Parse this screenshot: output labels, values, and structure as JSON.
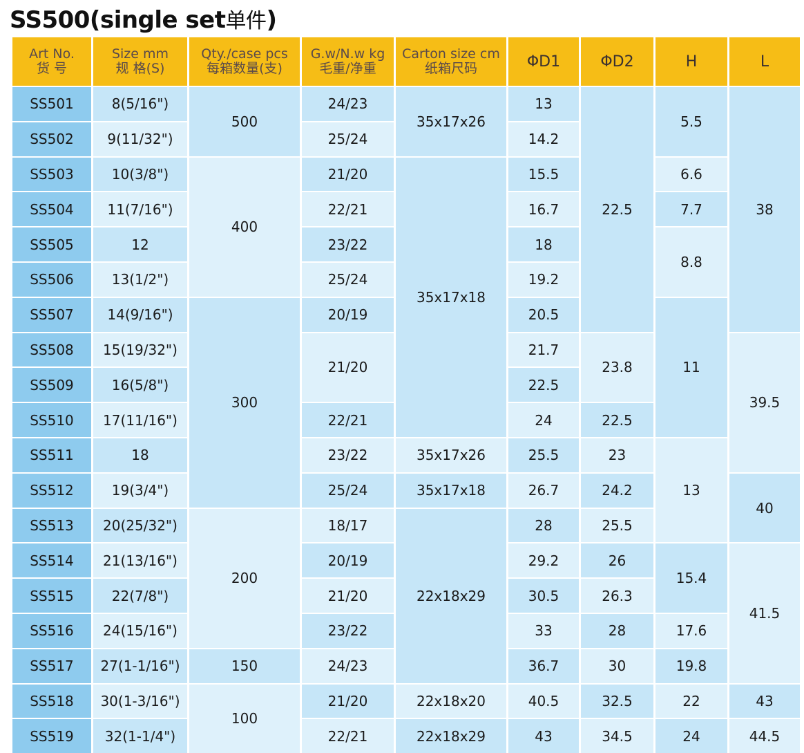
{
  "title": {
    "main": "SS500(single set",
    "cn": "单件",
    "close": ")"
  },
  "headers": [
    {
      "line1": "Art No.",
      "line2": "货  号"
    },
    {
      "line1": "Size mm",
      "line2": "规 格(S)"
    },
    {
      "line1": "Qty./case pcs",
      "line2": "每箱数量(支)"
    },
    {
      "line1": "G.w/N.w kg",
      "line2": "毛重/净重"
    },
    {
      "line1": "Carton size cm",
      "line2": "纸箱尺码"
    },
    {
      "line1": "ΦD1",
      "line2": ""
    },
    {
      "line1": "ΦD2",
      "line2": ""
    },
    {
      "line1": "H",
      "line2": ""
    },
    {
      "line1": "L",
      "line2": ""
    }
  ],
  "art_no": [
    "SS501",
    "SS502",
    "SS503",
    "SS504",
    "SS505",
    "SS506",
    "SS507",
    "SS508",
    "SS509",
    "SS510",
    "SS511",
    "SS512",
    "SS513",
    "SS514",
    "SS515",
    "SS516",
    "SS517",
    "SS518",
    "SS519"
  ],
  "size": [
    "8(5/16\")",
    "9(11/32\")",
    "10(3/8\")",
    "11(7/16\")",
    "12",
    "13(1/2\")",
    "14(9/16\")",
    "15(19/32\")",
    "16(5/8\")",
    "17(11/16\")",
    "18",
    "19(3/4\")",
    "20(25/32\")",
    "21(13/16\")",
    "22(7/8\")",
    "24(15/16\")",
    "27(1-1/16\")",
    "30(1-3/16\")",
    "32(1-1/4\")"
  ],
  "qty": [
    "500",
    "400",
    "300",
    "200",
    "150",
    "100"
  ],
  "weight": [
    "24/23",
    "25/24",
    "21/20",
    "22/21",
    "23/22",
    "25/24",
    "20/19",
    "21/20",
    "22/21",
    "23/22",
    "25/24",
    "18/17",
    "20/19",
    "21/20",
    "23/22",
    "24/23",
    "21/20",
    "22/21"
  ],
  "carton": [
    "35x17x26",
    "35x17x18",
    "35x17x26",
    "35x17x18",
    "22x18x29",
    "22x18x20",
    "22x18x29"
  ],
  "d1": [
    "13",
    "14.2",
    "15.5",
    "16.7",
    "18",
    "19.2",
    "20.5",
    "21.7",
    "22.5",
    "24",
    "25.5",
    "26.7",
    "28",
    "29.2",
    "30.5",
    "33",
    "36.7",
    "40.5",
    "43"
  ],
  "d2": [
    "22.5",
    "23.8",
    "22.5",
    "23",
    "24.2",
    "25.5",
    "26",
    "26.3",
    "28",
    "30",
    "32.5",
    "34.5"
  ],
  "h": [
    "5.5",
    "6.6",
    "7.7",
    "8.8",
    "11",
    "13",
    "15.4",
    "17.6",
    "19.8",
    "22",
    "24"
  ],
  "l": [
    "38",
    "39.5",
    "40",
    "41.5",
    "43",
    "44.5"
  ]
}
